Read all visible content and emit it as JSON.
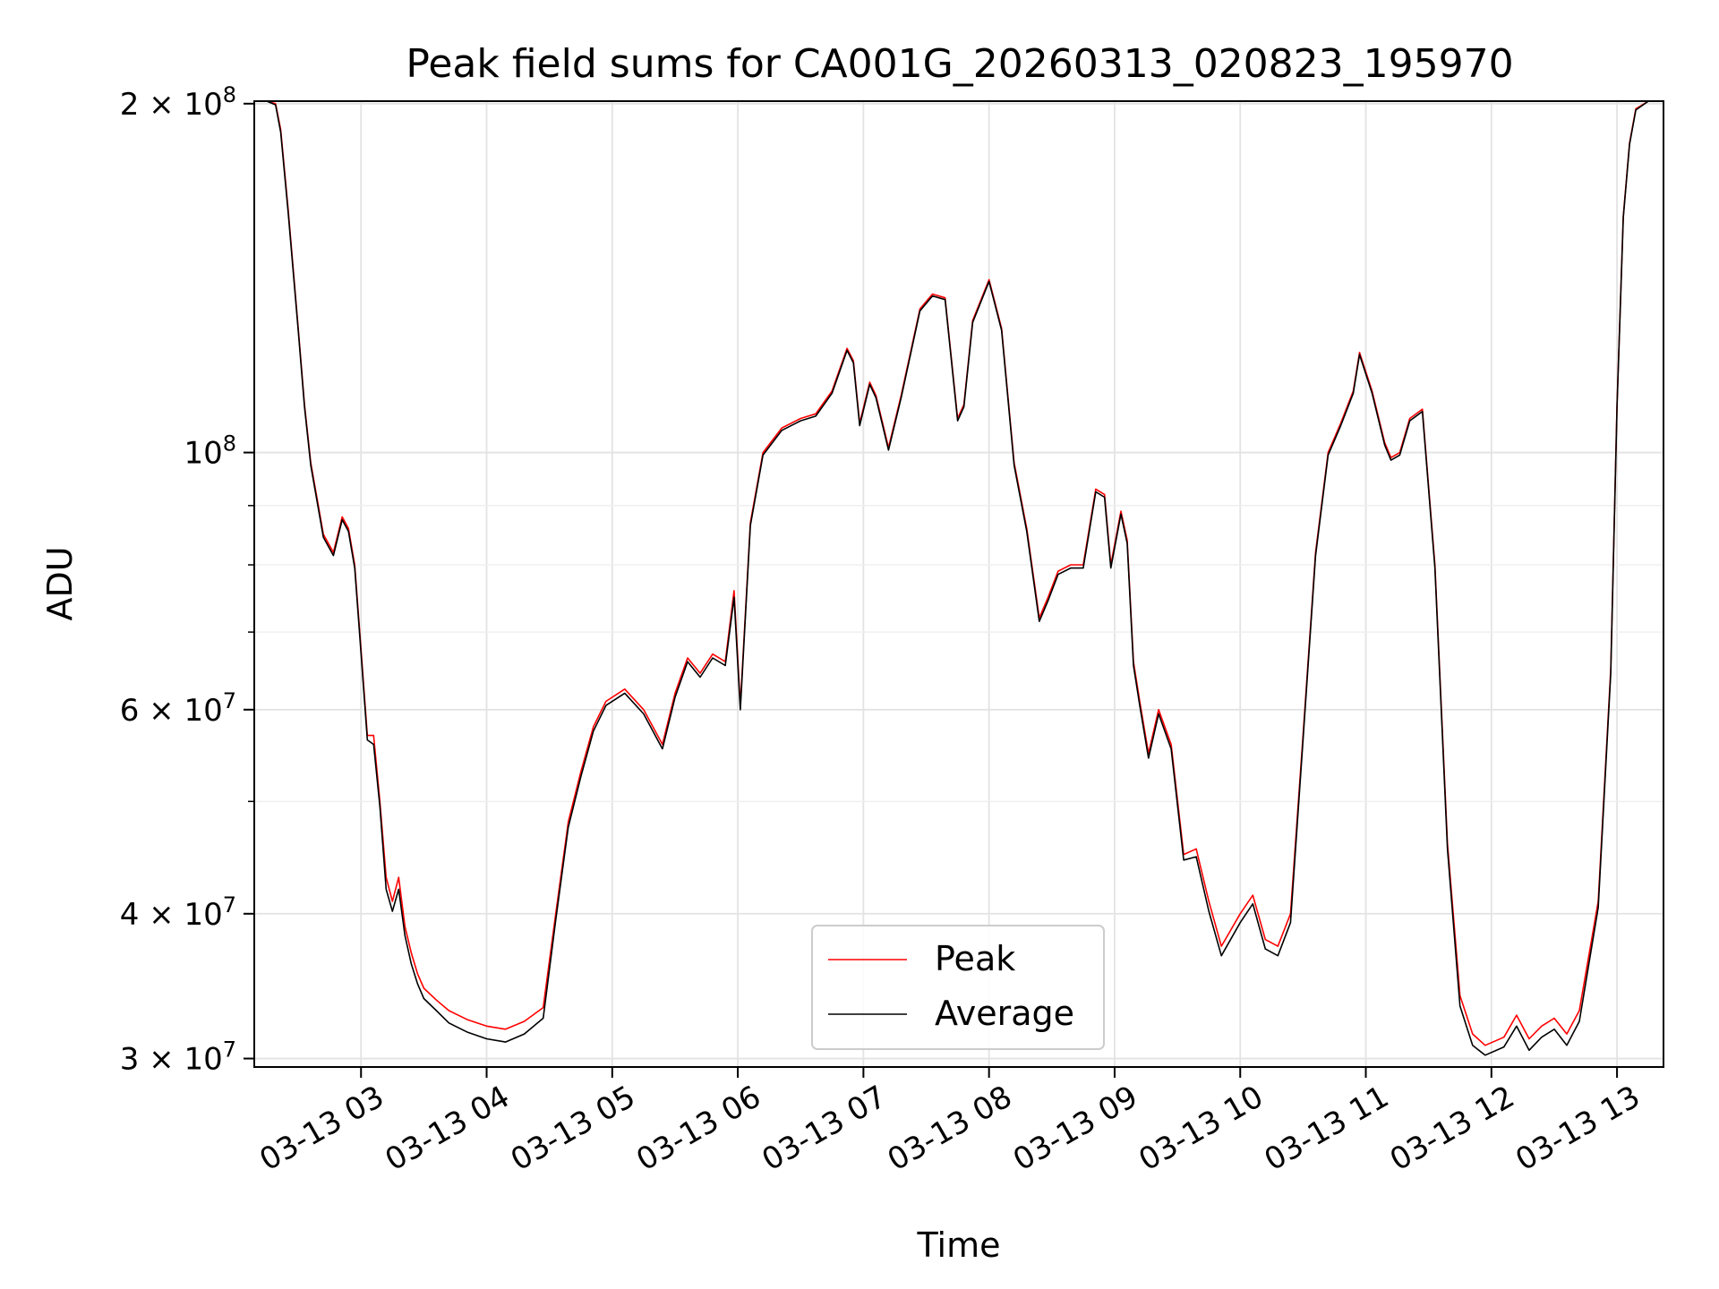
{
  "chart_data": {
    "type": "line",
    "title": "Peak field sums for CA001G_20260313_020823_195970",
    "xlabel": "Time",
    "ylabel": "ADU",
    "yscale": "log",
    "ylim": [
      29500000,
      201000000
    ],
    "xlim_hours": [
      2.15,
      13.37
    ],
    "grid": true,
    "legend_position": "lower-center",
    "x_ticks": [
      {
        "label": "03-13 03",
        "hour": 3
      },
      {
        "label": "03-13 04",
        "hour": 4
      },
      {
        "label": "03-13 05",
        "hour": 5
      },
      {
        "label": "03-13 06",
        "hour": 6
      },
      {
        "label": "03-13 07",
        "hour": 7
      },
      {
        "label": "03-13 08",
        "hour": 8
      },
      {
        "label": "03-13 09",
        "hour": 9
      },
      {
        "label": "03-13 10",
        "hour": 10
      },
      {
        "label": "03-13 11",
        "hour": 11
      },
      {
        "label": "03-13 12",
        "hour": 12
      },
      {
        "label": "03-13 13",
        "hour": 13
      }
    ],
    "y_ticks": [
      {
        "base": "3 × 10",
        "exp": "7",
        "value": 30000000
      },
      {
        "base": "4 × 10",
        "exp": "7",
        "value": 40000000
      },
      {
        "base": "6 × 10",
        "exp": "7",
        "value": 60000000
      },
      {
        "base": "10",
        "exp": "8",
        "value": 100000000
      },
      {
        "base": "2 × 10",
        "exp": "8",
        "value": 200000000
      }
    ],
    "y_minor_ticks": [
      50000000,
      70000000,
      80000000,
      90000000
    ],
    "x_hours": [
      2.15,
      2.25,
      2.32,
      2.36,
      2.42,
      2.5,
      2.55,
      2.6,
      2.7,
      2.78,
      2.85,
      2.9,
      2.95,
      2.99,
      3.05,
      3.1,
      3.15,
      3.2,
      3.25,
      3.3,
      3.35,
      3.4,
      3.45,
      3.5,
      3.6,
      3.7,
      3.85,
      4.0,
      4.15,
      4.3,
      4.45,
      4.55,
      4.65,
      4.75,
      4.85,
      4.95,
      5.1,
      5.25,
      5.4,
      5.5,
      5.6,
      5.7,
      5.8,
      5.9,
      5.97,
      6.02,
      6.1,
      6.2,
      6.35,
      6.5,
      6.62,
      6.75,
      6.87,
      6.92,
      6.97,
      7.05,
      7.1,
      7.2,
      7.3,
      7.45,
      7.55,
      7.65,
      7.75,
      7.8,
      7.87,
      8.0,
      8.1,
      8.2,
      8.3,
      8.4,
      8.47,
      8.55,
      8.65,
      8.75,
      8.85,
      8.92,
      8.97,
      9.05,
      9.1,
      9.15,
      9.2,
      9.27,
      9.35,
      9.45,
      9.55,
      9.65,
      9.75,
      9.85,
      10.0,
      10.1,
      10.2,
      10.3,
      10.4,
      10.5,
      10.6,
      10.7,
      10.8,
      10.9,
      10.95,
      11.05,
      11.15,
      11.2,
      11.27,
      11.35,
      11.45,
      11.55,
      11.65,
      11.75,
      11.85,
      11.95,
      12.1,
      12.2,
      12.3,
      12.4,
      12.5,
      12.6,
      12.7,
      12.85,
      12.95,
      13.0,
      13.05,
      13.1,
      13.15,
      13.25,
      13.37
    ],
    "series": [
      {
        "name": "Peak",
        "color": "#ff0000",
        "values": [
          201000000,
          201000000,
          200000000,
          190000000,
          162000000,
          128000000,
          110000000,
          98000000,
          85000000,
          82000000,
          88000000,
          86000000,
          80000000,
          70000000,
          57000000,
          57000000,
          50000000,
          43000000,
          41000000,
          43000000,
          39000000,
          37000000,
          35500000,
          34500000,
          33700000,
          33000000,
          32400000,
          32000000,
          31800000,
          32300000,
          33200000,
          40000000,
          48000000,
          53000000,
          58000000,
          61000000,
          62500000,
          60000000,
          56000000,
          62000000,
          66500000,
          64500000,
          67000000,
          66000000,
          76000000,
          60500000,
          87000000,
          100000000,
          105000000,
          107000000,
          108000000,
          113000000,
          123000000,
          120000000,
          106000000,
          115000000,
          112000000,
          101000000,
          112000000,
          133000000,
          137000000,
          136000000,
          107000000,
          110000000,
          130000000,
          141000000,
          128000000,
          98000000,
          86000000,
          72000000,
          75000000,
          79000000,
          80000000,
          80000000,
          93000000,
          92000000,
          80000000,
          89000000,
          84000000,
          66000000,
          61000000,
          55000000,
          60000000,
          56000000,
          45000000,
          45500000,
          41000000,
          37500000,
          40000000,
          41500000,
          38000000,
          37500000,
          40000000,
          57000000,
          82000000,
          100000000,
          106000000,
          113000000,
          122000000,
          113000000,
          102000000,
          99000000,
          100000000,
          107000000,
          109000000,
          80000000,
          46000000,
          34000000,
          31500000,
          30800000,
          31300000,
          32700000,
          31200000,
          32000000,
          32500000,
          31500000,
          33000000,
          41000000,
          65000000,
          110000000,
          160000000,
          185000000,
          198000000,
          201000000,
          201000000
        ]
      },
      {
        "name": "Average",
        "color": "#000000",
        "values": [
          201000000,
          201000000,
          199500000,
          189000000,
          161000000,
          127500000,
          109500000,
          97500000,
          84500000,
          81500000,
          87500000,
          85500000,
          79500000,
          69500000,
          56500000,
          56000000,
          49500000,
          42000000,
          40200000,
          42000000,
          38300000,
          36200000,
          34800000,
          33800000,
          33000000,
          32200000,
          31600000,
          31200000,
          31000000,
          31500000,
          32500000,
          39500000,
          47500000,
          52500000,
          57500000,
          60500000,
          62000000,
          59500000,
          55500000,
          61500000,
          66000000,
          64000000,
          66500000,
          65500000,
          75000000,
          60000000,
          86500000,
          99500000,
          104500000,
          106500000,
          107500000,
          112500000,
          122500000,
          119500000,
          105500000,
          114500000,
          111500000,
          100500000,
          111500000,
          132500000,
          136500000,
          135500000,
          106500000,
          109500000,
          129500000,
          140500000,
          127500000,
          97500000,
          85500000,
          71500000,
          74500000,
          78500000,
          79500000,
          79500000,
          92500000,
          91500000,
          79500000,
          88500000,
          83500000,
          65500000,
          60500000,
          54500000,
          59500000,
          55500000,
          44500000,
          44800000,
          40200000,
          36800000,
          39300000,
          40800000,
          37300000,
          36800000,
          39300000,
          56500000,
          81500000,
          99500000,
          105500000,
          112500000,
          121500000,
          112500000,
          101500000,
          98500000,
          99500000,
          106500000,
          108500000,
          79500000,
          45500000,
          33300000,
          30800000,
          30200000,
          30700000,
          32000000,
          30500000,
          31300000,
          31800000,
          30800000,
          32300000,
          40500000,
          64500000,
          109500000,
          159500000,
          184500000,
          197500000,
          201000000,
          201000000
        ]
      }
    ]
  }
}
